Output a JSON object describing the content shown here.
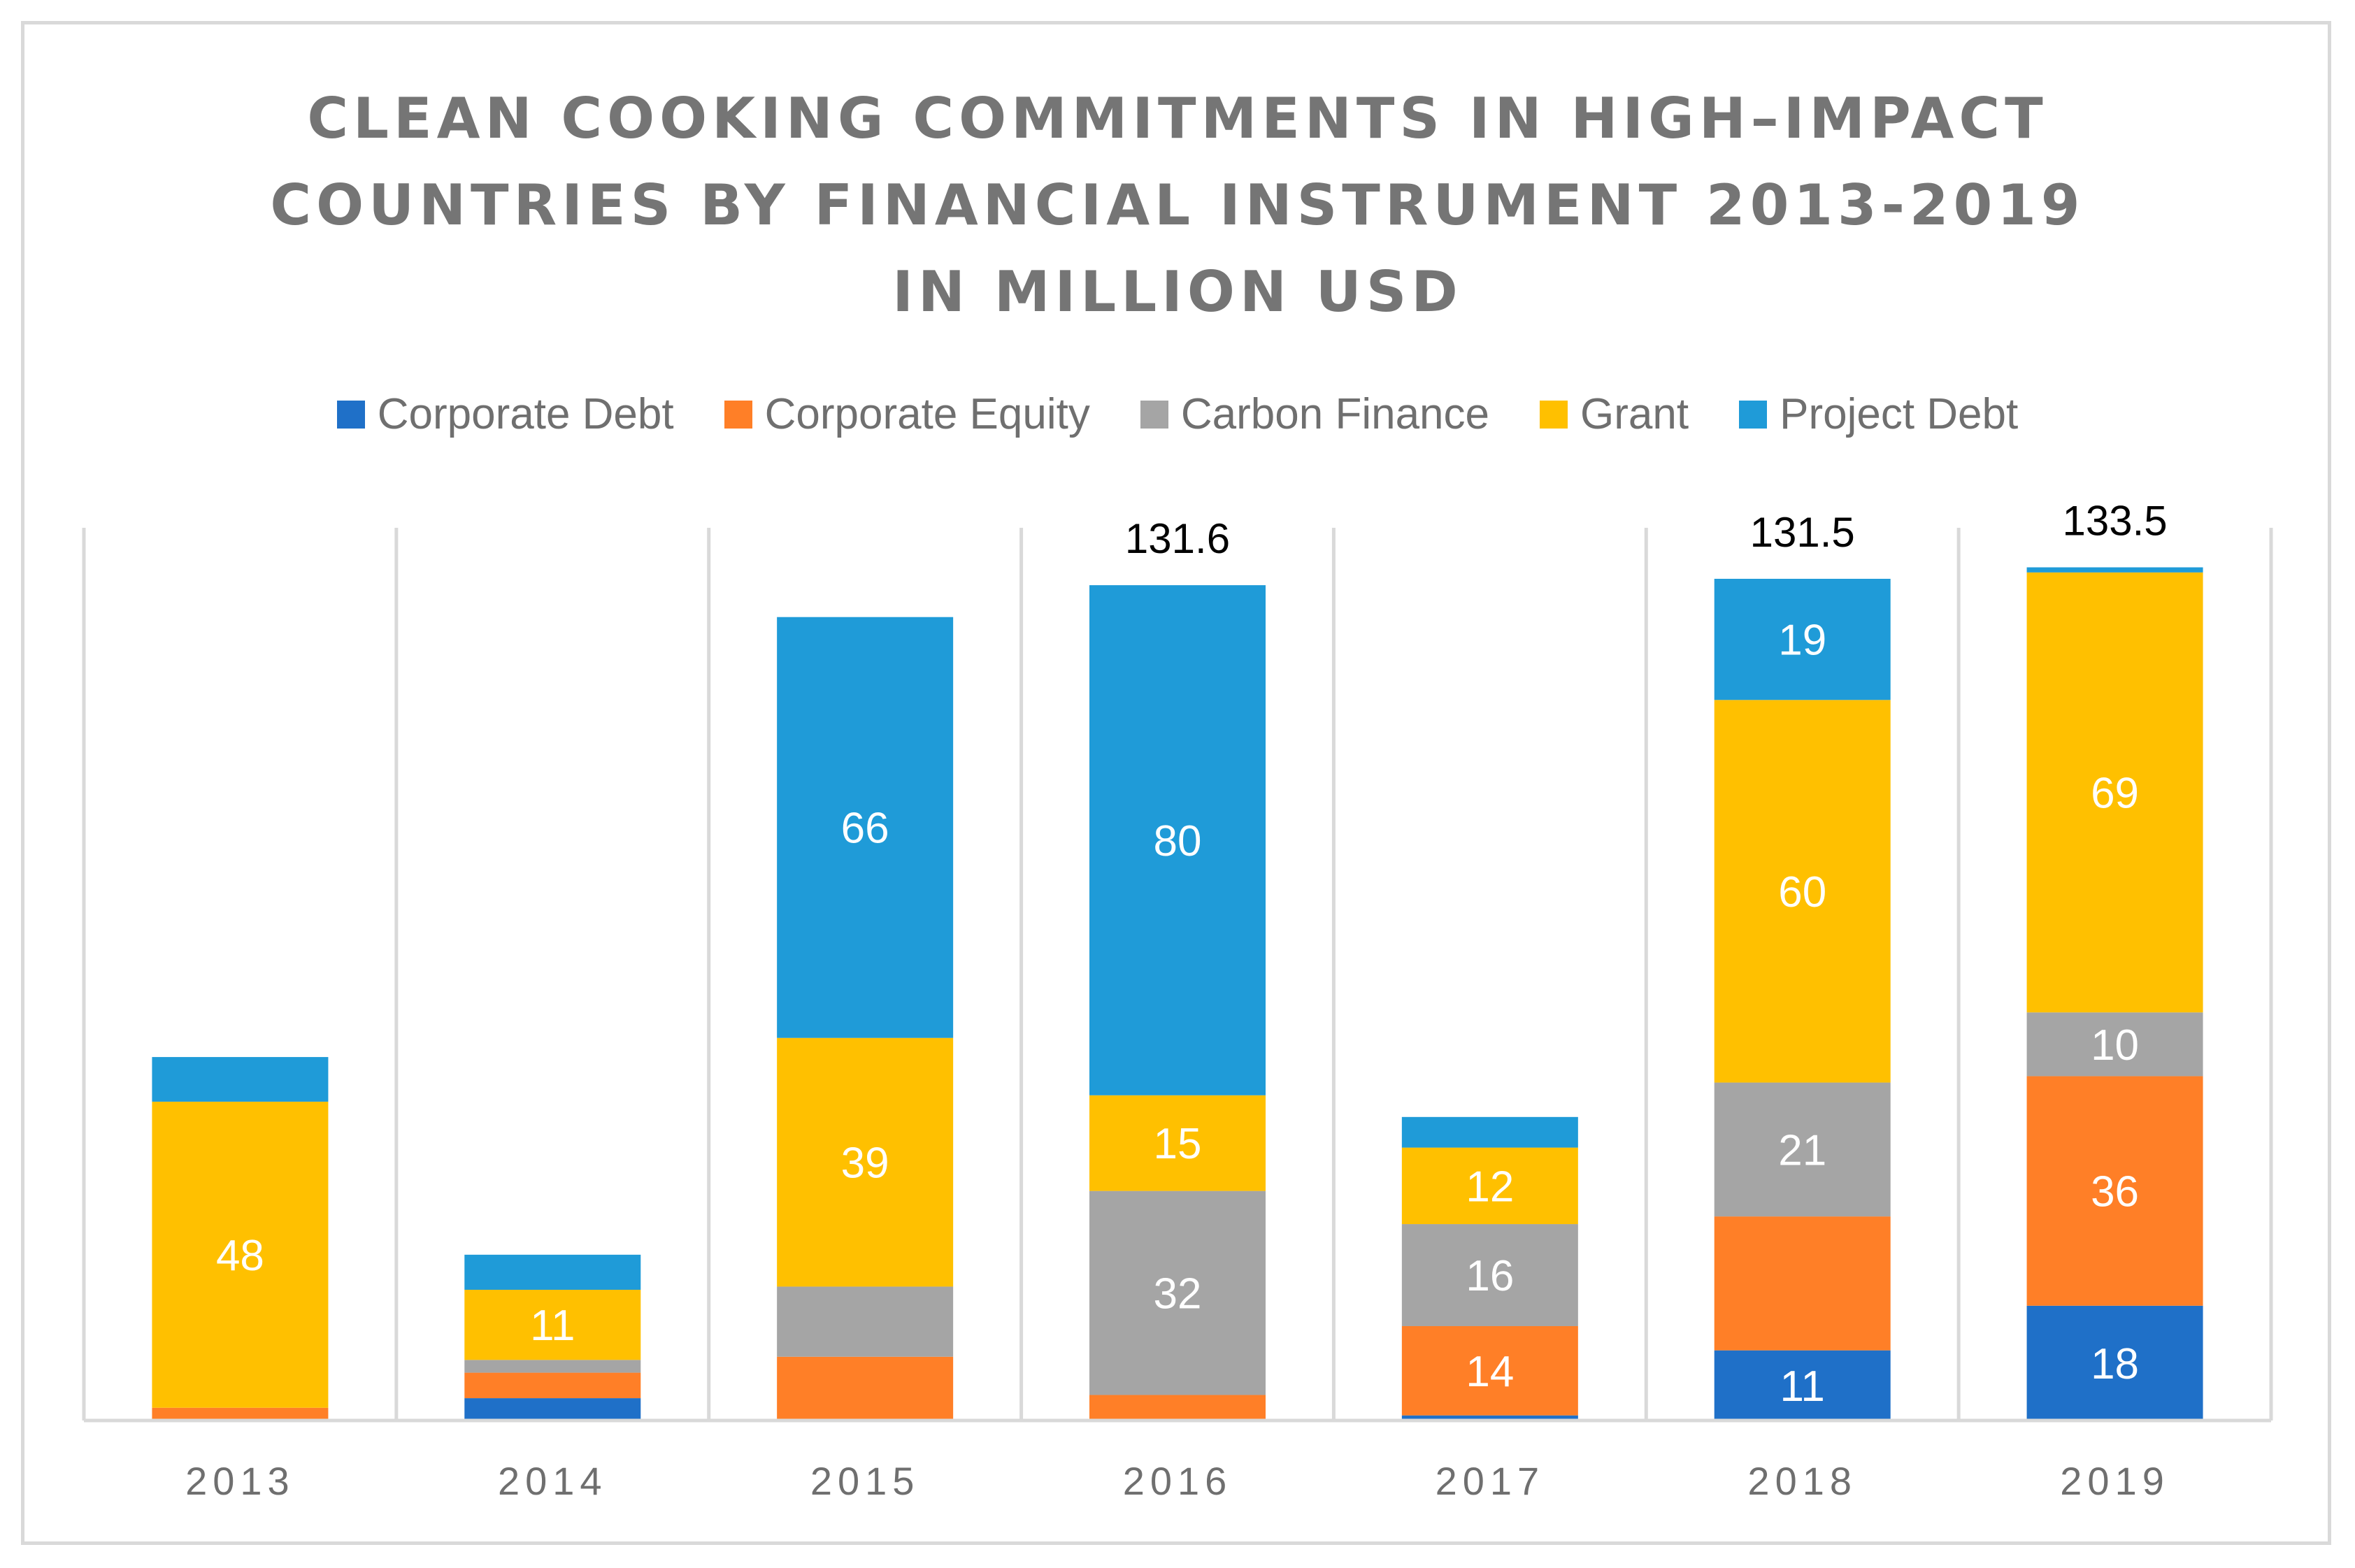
{
  "chart_data": {
    "type": "bar",
    "stacked": true,
    "title": [
      "CLEAN COOKING COMMITMENTS IN HIGH–IMPACT",
      "COUNTRIES BY FINANCIAL INSTRUMENT 2013-2019",
      "IN MILLION USD"
    ],
    "xlabel": "",
    "ylabel": "",
    "ylim": [
      0,
      140
    ],
    "categories": [
      "2013",
      "2014",
      "2015",
      "2016",
      "2017",
      "2018",
      "2019"
    ],
    "series": [
      {
        "name": "Corporate Debt",
        "color": "#1f70c8",
        "values": [
          0,
          3.5,
          0,
          0,
          0.8,
          11,
          18
        ],
        "labels": [
          "",
          "",
          "",
          "",
          "",
          "11",
          "18"
        ]
      },
      {
        "name": "Corporate Equity",
        "color": "#ff7f27",
        "values": [
          2,
          4,
          10,
          4,
          14,
          21,
          36
        ],
        "labels": [
          "",
          "",
          "",
          "",
          "14",
          "",
          "36"
        ]
      },
      {
        "name": "Carbon Finance",
        "color": "#a5a5a5",
        "values": [
          0,
          2,
          11,
          32,
          16,
          21,
          10
        ],
        "labels": [
          "",
          "",
          "",
          "32",
          "16",
          "21",
          "10"
        ]
      },
      {
        "name": "Grant",
        "color": "#ffc000",
        "values": [
          48,
          11,
          39,
          15,
          12,
          60,
          69
        ],
        "labels": [
          "48",
          "11",
          "39",
          "15",
          "12",
          "60",
          "69"
        ]
      },
      {
        "name": "Project Debt",
        "color": "#1f9bd8",
        "values": [
          7,
          5.5,
          66,
          80,
          4.8,
          19,
          0.8
        ],
        "labels": [
          "",
          "",
          "66",
          "80",
          "",
          "19",
          ""
        ]
      }
    ],
    "totals": [
      "",
      "",
      "",
      "131.6",
      "",
      "131.5",
      "133.5"
    ],
    "legend_position": "top",
    "grid": "vertical category separators"
  }
}
